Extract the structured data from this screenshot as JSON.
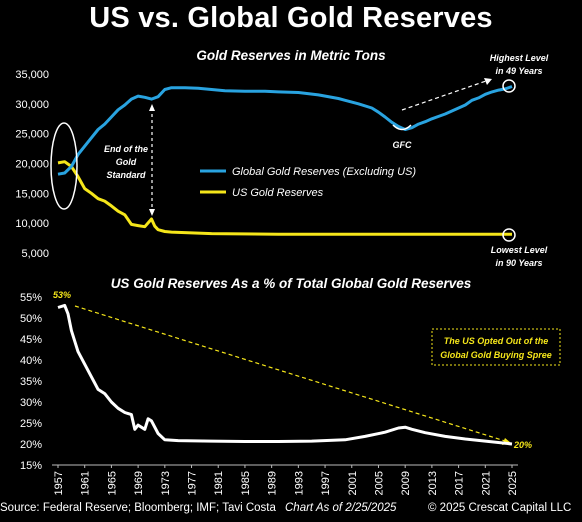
{
  "title": "US vs. Global Gold Reserves",
  "footer": {
    "source": "Source: Federal Reserve; Bloomberg; IMF; Tavi Costa",
    "as_of": "Chart As of 2/25/2025",
    "copyright": "© 2025 Crescat Capital LLC"
  },
  "colors": {
    "global": "#29a3e0",
    "us": "#f5e61a",
    "us_pct": "#ffffff",
    "background": "#000000"
  },
  "chart_data": [
    {
      "type": "line",
      "title": "Gold Reserves in Metric Tons",
      "ylim": [
        5000,
        35000
      ],
      "y_ticks": [
        "35,000",
        "30,000",
        "25,000",
        "20,000",
        "15,000",
        "10,000",
        "5,000"
      ],
      "x_range": [
        1957,
        2025
      ],
      "series": [
        {
          "name": "Global Gold Reserves (Excluding US)",
          "x": [
            1957,
            1958,
            1959,
            1960,
            1961,
            1962,
            1963,
            1964,
            1965,
            1966,
            1967,
            1968,
            1969,
            1970,
            1971,
            1972,
            1973,
            1974,
            1976,
            1978,
            1980,
            1982,
            1985,
            1988,
            1990,
            1993,
            1996,
            1999,
            2000,
            2002,
            2004,
            2005,
            2006,
            2007,
            2008,
            2009,
            2010,
            2011,
            2012,
            2013,
            2014,
            2015,
            2016,
            2017,
            2018,
            2019,
            2020,
            2021,
            2022,
            2023,
            2024,
            2025
          ],
          "values": [
            18200,
            18400,
            19500,
            21500,
            22900,
            24300,
            25700,
            26600,
            27800,
            29000,
            29800,
            30800,
            31300,
            31100,
            30800,
            31200,
            32400,
            32700,
            32700,
            32600,
            32400,
            32200,
            32100,
            32100,
            32000,
            31900,
            31500,
            30900,
            30600,
            30000,
            29300,
            28600,
            27800,
            26900,
            26200,
            25700,
            26000,
            26600,
            27000,
            27500,
            27900,
            28300,
            28800,
            29300,
            29800,
            30600,
            31000,
            31600,
            32000,
            32300,
            32500,
            32900
          ]
        },
        {
          "name": "US Gold Reserves",
          "x": [
            1957,
            1958,
            1959,
            1960,
            1961,
            1962,
            1963,
            1964,
            1965,
            1966,
            1967,
            1968,
            1969,
            1970,
            1971,
            1971.5,
            1972,
            1973,
            1974,
            1980,
            1990,
            2000,
            2010,
            2025
          ],
          "values": [
            20100,
            20300,
            19500,
            17800,
            15800,
            15000,
            14100,
            13700,
            12900,
            12000,
            11400,
            9800,
            9600,
            9400,
            10700,
            9500,
            8900,
            8600,
            8500,
            8250,
            8150,
            8140,
            8133,
            8133
          ]
        }
      ],
      "annotations": {
        "end_gold_standard": [
          "End of the",
          "Gold",
          "Standard"
        ],
        "gfc": "GFC",
        "highest": [
          "Highest Level",
          "in 49 Years"
        ],
        "lowest": [
          "Lowest Level",
          "in 90 Years"
        ]
      }
    },
    {
      "type": "line",
      "title": "US Gold Reserves As a % of Total Global Gold Reserves",
      "ylim": [
        15,
        55
      ],
      "y_ticks": [
        "55%",
        "50%",
        "45%",
        "40%",
        "35%",
        "30%",
        "25%",
        "20%",
        "15%"
      ],
      "x_ticks": [
        "1957",
        "1961",
        "1965",
        "1969",
        "1973",
        "1977",
        "1981",
        "1985",
        "1989",
        "1993",
        "1997",
        "2001",
        "2005",
        "2009",
        "2013",
        "2017",
        "2021",
        "2025"
      ],
      "series": [
        {
          "x": [
            1957,
            1958,
            1958.5,
            1959,
            1960,
            1961,
            1962,
            1963,
            1964,
            1965,
            1966,
            1967,
            1968,
            1968.5,
            1969,
            1970,
            1970.5,
            1971,
            1972,
            1973,
            1975,
            1980,
            1985,
            1990,
            1995,
            2000,
            2003,
            2006,
            2008,
            2009,
            2010,
            2012,
            2015,
            2018,
            2021,
            2025
          ],
          "values": [
            52.5,
            53,
            51,
            47,
            42,
            39,
            36,
            33,
            32,
            30,
            28.5,
            27.5,
            27,
            23.5,
            24.5,
            23.5,
            26,
            25.5,
            22.5,
            21,
            20.8,
            20.7,
            20.6,
            20.6,
            20.7,
            21,
            21.8,
            22.8,
            23.8,
            24,
            23.5,
            22.7,
            21.8,
            21.2,
            20.7,
            20
          ]
        }
      ],
      "annotations": {
        "start": "53%",
        "end": "20%",
        "box": [
          "The US Opted Out of the",
          "Global Gold Buying Spree"
        ]
      }
    }
  ]
}
